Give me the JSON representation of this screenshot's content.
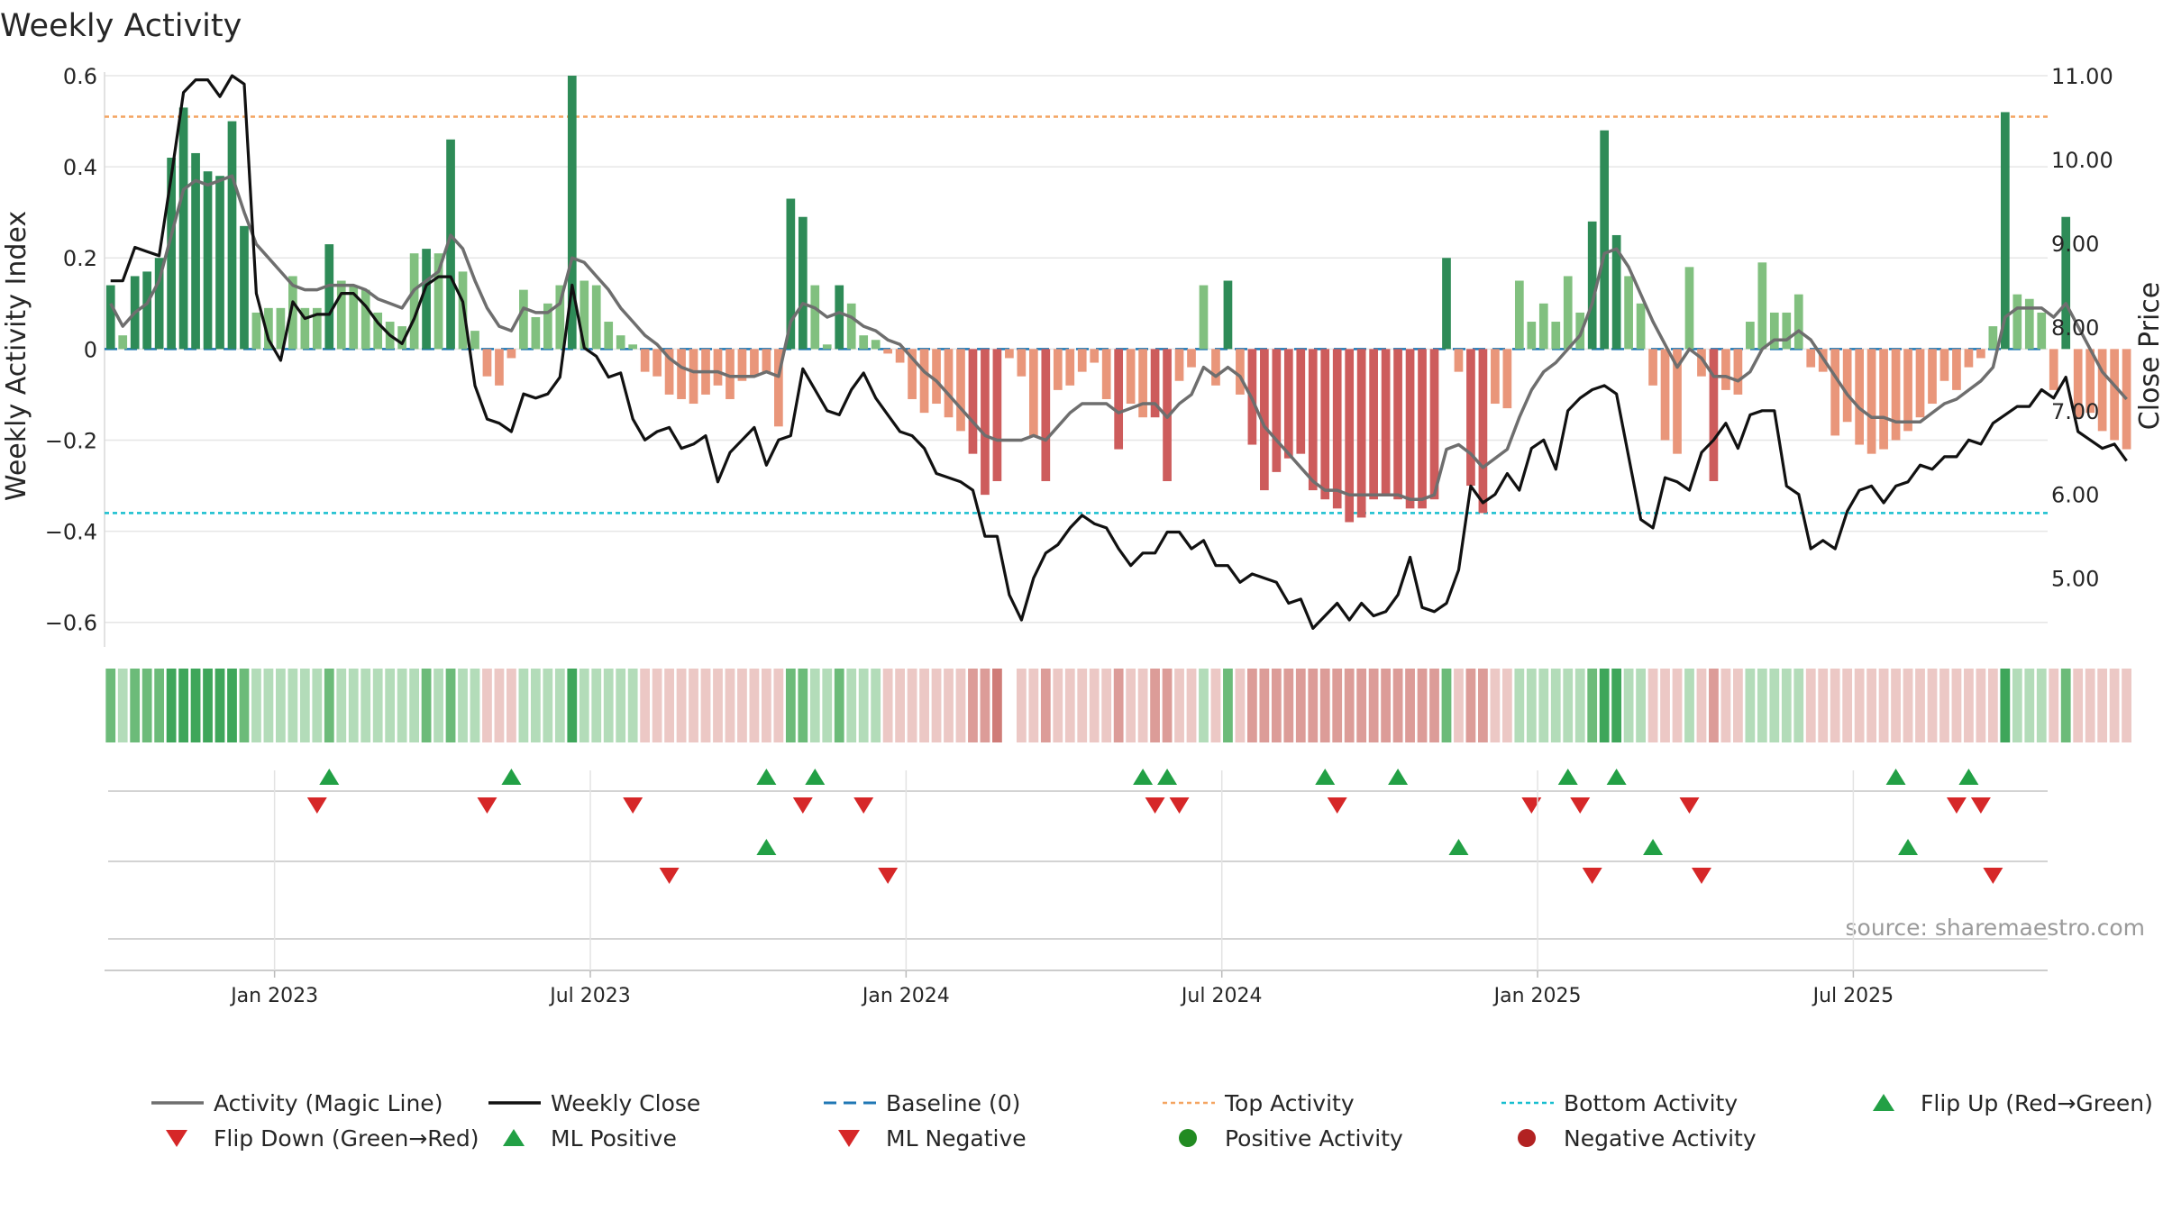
{
  "chart_data": {
    "type": "bar",
    "title": "Weekly Activity",
    "ylabel_left": "Weekly Activity Index",
    "ylabel_right": "Close Price",
    "ylim_left": [
      -0.65,
      0.6
    ],
    "ylim_right": [
      4.2,
      11.0
    ],
    "yticks_left": [
      "0.6",
      "0.4",
      "0.2",
      "0",
      "−0.2",
      "−0.4",
      "−0.6"
    ],
    "yticks_left_values": [
      0.6,
      0.4,
      0.2,
      0,
      -0.2,
      -0.4,
      -0.6
    ],
    "yticks_right": [
      "11.00",
      "10.00",
      "9.00",
      "8.00",
      "7.00",
      "6.00",
      "5.00"
    ],
    "yticks_right_values": [
      11,
      10,
      9,
      8,
      7,
      6,
      5
    ],
    "x_range_weeks": [
      0,
      160
    ],
    "xticks": [
      {
        "label": "Jan 2023",
        "week": 14
      },
      {
        "label": "Jul 2023",
        "week": 40
      },
      {
        "label": "Jan 2024",
        "week": 66
      },
      {
        "label": "Jul 2024",
        "week": 92
      },
      {
        "label": "Jan 2025",
        "week": 118
      },
      {
        "label": "Jul 2025",
        "week": 144
      }
    ],
    "top_activity": 0.51,
    "bottom_activity": -0.36,
    "baseline": 0,
    "activity": [
      0.14,
      0.03,
      0.16,
      0.17,
      0.2,
      0.42,
      0.53,
      0.43,
      0.39,
      0.38,
      0.5,
      0.27,
      0.08,
      0.09,
      0.09,
      0.16,
      0.09,
      0.09,
      0.23,
      0.15,
      0.14,
      0.13,
      0.08,
      0.06,
      0.05,
      0.21,
      0.22,
      0.21,
      0.46,
      0.17,
      0.04,
      -0.06,
      -0.08,
      -0.02,
      0.13,
      0.07,
      0.1,
      0.14,
      0.6,
      0.15,
      0.14,
      0.06,
      0.03,
      0.01,
      -0.05,
      -0.06,
      -0.1,
      -0.11,
      -0.12,
      -0.1,
      -0.08,
      -0.11,
      -0.07,
      -0.06,
      -0.05,
      -0.17,
      0.33,
      0.29,
      0.14,
      0.01,
      0.14,
      0.1,
      0.03,
      0.02,
      -0.01,
      -0.03,
      -0.11,
      -0.14,
      -0.12,
      -0.15,
      -0.18,
      -0.23,
      -0.32,
      -0.29,
      -0.02,
      -0.06,
      -0.19,
      -0.29,
      -0.09,
      -0.08,
      -0.05,
      -0.03,
      -0.11,
      -0.22,
      -0.12,
      -0.15,
      -0.15,
      -0.29,
      -0.07,
      -0.04,
      0.14,
      -0.08,
      0.15,
      -0.1,
      -0.21,
      -0.31,
      -0.27,
      -0.24,
      -0.23,
      -0.31,
      -0.33,
      -0.35,
      -0.38,
      -0.37,
      -0.33,
      -0.32,
      -0.33,
      -0.35,
      -0.35,
      -0.33,
      0.2,
      -0.05,
      -0.3,
      -0.36,
      -0.12,
      -0.13,
      0.15,
      0.06,
      0.1,
      0.06,
      0.16,
      0.08,
      0.28,
      0.48,
      0.25,
      0.16,
      0.1,
      -0.08,
      -0.2,
      -0.23,
      0.18,
      -0.06,
      -0.29,
      -0.09,
      -0.1,
      0.06,
      0.19,
      0.08,
      0.08,
      0.12,
      -0.04,
      -0.05,
      -0.19,
      -0.16,
      -0.21,
      -0.23,
      -0.22,
      -0.2,
      -0.18,
      -0.15,
      -0.12,
      -0.07,
      -0.09,
      -0.04,
      -0.02,
      0.05,
      0.52,
      0.12,
      0.11,
      0.08,
      -0.09,
      0.29,
      -0.15,
      -0.14,
      -0.18,
      -0.2,
      -0.22
    ],
    "magic_line": [
      0.1,
      0.05,
      0.08,
      0.1,
      0.15,
      0.25,
      0.35,
      0.37,
      0.36,
      0.37,
      0.38,
      0.3,
      0.23,
      0.2,
      0.17,
      0.14,
      0.13,
      0.13,
      0.14,
      0.14,
      0.14,
      0.13,
      0.11,
      0.1,
      0.09,
      0.13,
      0.15,
      0.17,
      0.25,
      0.22,
      0.15,
      0.09,
      0.05,
      0.04,
      0.09,
      0.08,
      0.08,
      0.1,
      0.2,
      0.19,
      0.16,
      0.13,
      0.09,
      0.06,
      0.03,
      0.01,
      -0.02,
      -0.04,
      -0.05,
      -0.05,
      -0.05,
      -0.06,
      -0.06,
      -0.06,
      -0.05,
      -0.06,
      0.06,
      0.1,
      0.09,
      0.07,
      0.08,
      0.07,
      0.05,
      0.04,
      0.02,
      0.01,
      -0.02,
      -0.05,
      -0.07,
      -0.1,
      -0.13,
      -0.16,
      -0.19,
      -0.2,
      -0.2,
      -0.2,
      -0.19,
      -0.2,
      -0.17,
      -0.14,
      -0.12,
      -0.12,
      -0.12,
      -0.14,
      -0.13,
      -0.12,
      -0.12,
      -0.15,
      -0.12,
      -0.1,
      -0.04,
      -0.06,
      -0.04,
      -0.06,
      -0.11,
      -0.17,
      -0.2,
      -0.23,
      -0.26,
      -0.29,
      -0.31,
      -0.31,
      -0.32,
      -0.32,
      -0.32,
      -0.32,
      -0.32,
      -0.33,
      -0.33,
      -0.32,
      -0.22,
      -0.21,
      -0.23,
      -0.26,
      -0.24,
      -0.22,
      -0.15,
      -0.09,
      -0.05,
      -0.03,
      0.0,
      0.03,
      0.1,
      0.21,
      0.22,
      0.18,
      0.12,
      0.06,
      0.01,
      -0.04,
      0.0,
      -0.02,
      -0.06,
      -0.06,
      -0.07,
      -0.05,
      0.0,
      0.02,
      0.02,
      0.04,
      0.02,
      -0.02,
      -0.06,
      -0.1,
      -0.13,
      -0.15,
      -0.15,
      -0.16,
      -0.16,
      -0.16,
      -0.14,
      -0.12,
      -0.11,
      -0.09,
      -0.07,
      -0.04,
      0.07,
      0.09,
      0.09,
      0.09,
      0.07,
      0.1,
      0.05,
      0.0,
      -0.05,
      -0.08,
      -0.11
    ],
    "weekly_close": [
      8.55,
      8.55,
      8.95,
      8.9,
      8.85,
      9.8,
      10.8,
      10.95,
      10.95,
      10.75,
      11.0,
      10.9,
      8.4,
      7.85,
      7.6,
      8.3,
      8.1,
      8.15,
      8.15,
      8.4,
      8.4,
      8.25,
      8.05,
      7.9,
      7.8,
      8.1,
      8.5,
      8.6,
      8.6,
      8.3,
      7.3,
      6.9,
      6.85,
      6.75,
      7.2,
      7.15,
      7.2,
      7.4,
      8.5,
      7.75,
      7.65,
      7.4,
      7.45,
      6.9,
      6.65,
      6.75,
      6.8,
      6.55,
      6.6,
      6.7,
      6.15,
      6.5,
      6.65,
      6.8,
      6.35,
      6.65,
      6.7,
      7.5,
      7.25,
      7.0,
      6.95,
      7.25,
      7.45,
      7.15,
      6.95,
      6.75,
      6.7,
      6.55,
      6.25,
      6.2,
      6.15,
      6.05,
      5.5,
      5.5,
      4.8,
      4.5,
      5.0,
      5.3,
      5.4,
      5.6,
      5.75,
      5.65,
      5.6,
      5.35,
      5.15,
      5.3,
      5.3,
      5.55,
      5.55,
      5.35,
      5.45,
      5.15,
      5.15,
      4.95,
      5.05,
      5.0,
      4.95,
      4.7,
      4.75,
      4.4,
      4.55,
      4.7,
      4.5,
      4.7,
      4.55,
      4.6,
      4.8,
      5.25,
      4.65,
      4.6,
      4.7,
      5.1,
      6.1,
      5.9,
      6.0,
      6.25,
      6.05,
      6.55,
      6.65,
      6.3,
      7.0,
      7.15,
      7.25,
      7.3,
      7.2,
      6.45,
      5.7,
      5.6,
      6.2,
      6.15,
      6.05,
      6.5,
      6.65,
      6.85,
      6.55,
      6.95,
      7.0,
      7.0,
      6.1,
      6.0,
      5.35,
      5.45,
      5.35,
      5.8,
      6.05,
      6.1,
      5.9,
      6.1,
      6.15,
      6.35,
      6.3,
      6.45,
      6.45,
      6.65,
      6.6,
      6.85,
      6.95,
      7.05,
      7.05,
      7.25,
      7.15,
      7.4,
      6.75,
      6.65,
      6.55,
      6.6,
      6.4
    ],
    "activity_strip": [
      2,
      1,
      2,
      2,
      2,
      3,
      3,
      3,
      3,
      3,
      3,
      2,
      1,
      1,
      1,
      1,
      1,
      1,
      2,
      1,
      1,
      1,
      1,
      1,
      1,
      1,
      2,
      1,
      2,
      1,
      1,
      -1,
      -1,
      -1,
      1,
      1,
      1,
      1,
      3,
      1,
      1,
      1,
      1,
      1,
      -1,
      -1,
      -1,
      -1,
      -1,
      -1,
      -1,
      -1,
      -1,
      -1,
      -1,
      -1,
      2,
      2,
      1,
      1,
      2,
      1,
      1,
      1,
      -1,
      -1,
      -1,
      -1,
      -1,
      -1,
      -1,
      -2,
      -2,
      -3,
      0,
      -1,
      -1,
      -2,
      -1,
      -1,
      -1,
      -1,
      -1,
      -2,
      -1,
      -1,
      -2,
      -2,
      -1,
      -1,
      1,
      -1,
      2,
      -1,
      -2,
      -2,
      -2,
      -2,
      -2,
      -2,
      -2,
      -2,
      -2,
      -2,
      -2,
      -2,
      -2,
      -2,
      -2,
      -2,
      2,
      -1,
      -2,
      -2,
      -1,
      -1,
      1,
      1,
      1,
      1,
      1,
      1,
      2,
      3,
      3,
      1,
      1,
      -1,
      -1,
      -1,
      1,
      -1,
      -2,
      -1,
      -1,
      1,
      1,
      1,
      1,
      1,
      -1,
      -1,
      -1,
      -1,
      -1,
      -1,
      -1,
      -1,
      -1,
      -1,
      -1,
      -1,
      -1,
      -1,
      -1,
      -1,
      3,
      1,
      1,
      1,
      -1,
      2,
      -1,
      -1,
      -1,
      -1,
      -1
    ],
    "flip_up_weeks": [
      18,
      33,
      54,
      58,
      85,
      87,
      100,
      106,
      120,
      124,
      147,
      153
    ],
    "flip_down_weeks": [
      17,
      31,
      43,
      57,
      62,
      86,
      88,
      101,
      117,
      121,
      130,
      152,
      154
    ],
    "ml_positive_weeks": [
      54,
      111,
      127,
      148
    ],
    "ml_negative_weeks": [
      46,
      64,
      122,
      131,
      155
    ],
    "legend": [
      "Activity (Magic Line)",
      "Weekly Close",
      "Baseline (0)",
      "Top Activity",
      "Bottom Activity",
      "Flip Up (Red→Green)",
      "Flip Down (Green→Red)",
      "ML Positive",
      "ML Negative",
      "Positive Activity",
      "Negative Activity"
    ],
    "source": "source: sharemaestro.com"
  },
  "colors": {
    "green_dark": "#2e8b57",
    "green_light": "#81c07f",
    "red_dark": "#cd5c5c",
    "red_light": "#e9967a",
    "magic_line": "#6e6e6e",
    "close_line": "#111111",
    "baseline": "#1f77b4",
    "top_line": "#f4a460",
    "bottom_line": "#17becf",
    "marker_up": "#22a045",
    "marker_down": "#d62728",
    "pos_dot": "#228b22",
    "neg_dot": "#b22222"
  }
}
